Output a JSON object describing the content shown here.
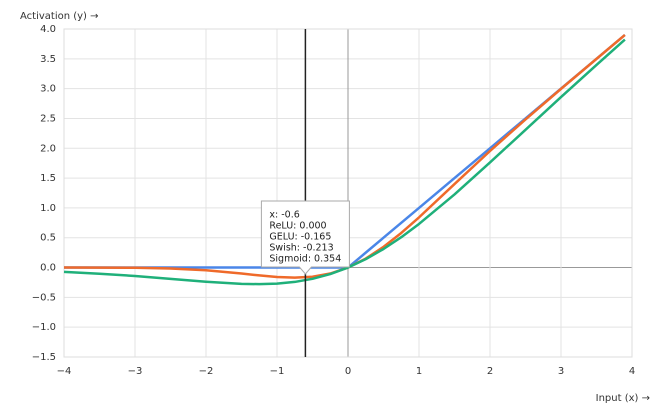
{
  "chart_data": {
    "type": "line",
    "y_label": "Activation (y) →",
    "x_label": "Input (x) →",
    "x": [
      -4,
      -3.5,
      -3,
      -2.5,
      -2,
      -1.5,
      -1.25,
      -1,
      -0.75,
      -0.5,
      -0.25,
      0,
      0.25,
      0.5,
      0.75,
      1,
      1.5,
      2,
      2.5,
      3,
      3.5,
      3.9
    ],
    "series": [
      {
        "name": "ReLU",
        "color": "#4a86e8",
        "values": [
          0,
          0,
          0,
          0,
          0,
          0,
          0,
          0,
          0,
          0,
          0,
          0,
          0.25,
          0.5,
          0.75,
          1,
          1.5,
          2,
          2.5,
          3,
          3.5,
          3.9
        ]
      },
      {
        "name": "GELU",
        "color": "#ef6a2a",
        "values": [
          0,
          -0.001,
          -0.004,
          -0.016,
          -0.046,
          -0.1,
          -0.132,
          -0.159,
          -0.17,
          -0.154,
          -0.1,
          0,
          0.15,
          0.346,
          0.58,
          0.841,
          1.4,
          1.954,
          2.484,
          2.996,
          3.499,
          3.9
        ]
      },
      {
        "name": "Swish",
        "color": "#1fb07a",
        "values": [
          -0.072,
          -0.103,
          -0.142,
          -0.19,
          -0.238,
          -0.274,
          -0.278,
          -0.269,
          -0.241,
          -0.189,
          -0.109,
          0,
          0.141,
          0.311,
          0.509,
          0.731,
          1.226,
          1.762,
          2.31,
          2.858,
          3.398,
          3.823
        ]
      }
    ],
    "xlim": [
      -4,
      4
    ],
    "xticks": [
      {
        "value": -4,
        "label": "−4"
      },
      {
        "value": -3,
        "label": "−3"
      },
      {
        "value": -2,
        "label": "−2"
      },
      {
        "value": -1,
        "label": "−1"
      },
      0,
      1,
      2,
      3,
      4
    ],
    "ylim": [
      -1.5,
      4
    ],
    "yticks": [
      {
        "value": 4,
        "label": "4.0"
      },
      {
        "value": 3.5,
        "label": "3.5"
      },
      {
        "value": 3,
        "label": "3.0"
      },
      {
        "value": 2.5,
        "label": "2.5"
      },
      {
        "value": 2,
        "label": "2.0"
      },
      {
        "value": 1.5,
        "label": "1.5"
      },
      {
        "value": 1,
        "label": "1.0"
      },
      {
        "value": 0.5,
        "label": "0.5"
      },
      {
        "value": 0,
        "label": "0.0"
      },
      {
        "value": -0.5,
        "label": "−0.5"
      },
      {
        "value": -1,
        "label": "−1.0"
      },
      {
        "value": -1.5,
        "label": "−1.5"
      }
    ],
    "grid": true,
    "crosshair_x": -0.6,
    "tooltip": [
      "x: -0.6",
      "ReLU: 0.000",
      "GELU: -0.165",
      "Swish: -0.213",
      "Sigmoid: 0.354"
    ]
  }
}
